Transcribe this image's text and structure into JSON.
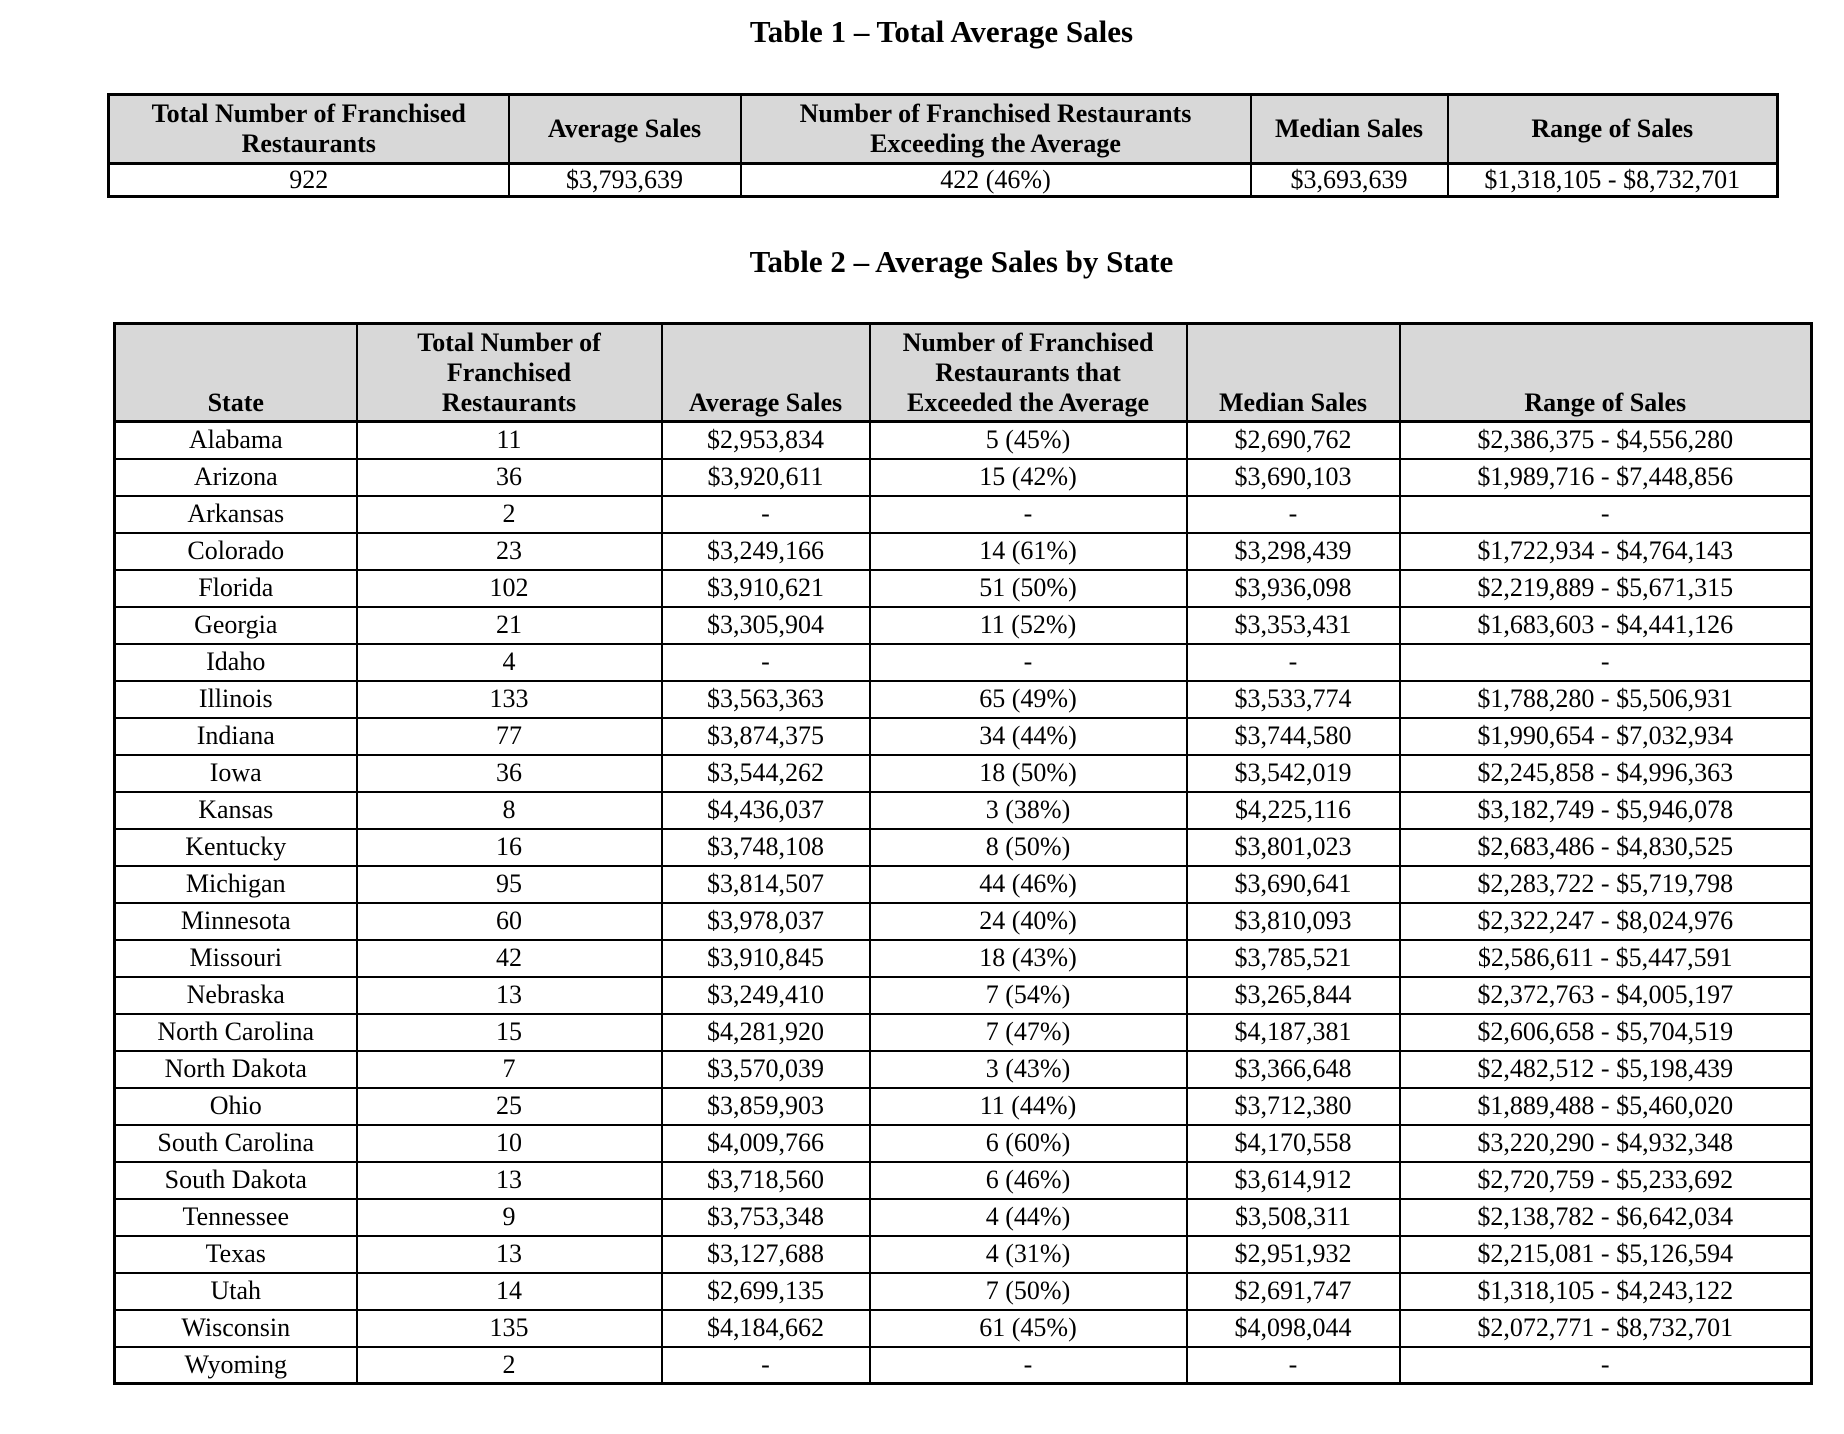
{
  "colors": {
    "header_bg": "#d8d8d8",
    "border": "#000000",
    "text": "#000000",
    "page_bg": "#ffffff"
  },
  "table1": {
    "title": "Table 1 – Total Average Sales",
    "headers": [
      "Total Number of Franchised\nRestaurants",
      "Average Sales",
      "Number of Franchised Restaurants\nExceeding the Average",
      "Median Sales",
      "Range of Sales"
    ],
    "rows": [
      [
        "922",
        "$3,793,639",
        "422 (46%)",
        "$3,693,639",
        "$1,318,105 - $8,732,701"
      ]
    ]
  },
  "table2": {
    "title": "Table 2 – Average Sales by State",
    "headers": [
      "State",
      "Total Number of\nFranchised\nRestaurants",
      "Average Sales",
      "Number of Franchised\nRestaurants that\nExceeded the Average",
      "Median Sales",
      "Range of Sales"
    ],
    "rows": [
      [
        "Alabama",
        "11",
        "$2,953,834",
        "5 (45%)",
        "$2,690,762",
        "$2,386,375 - $4,556,280"
      ],
      [
        "Arizona",
        "36",
        "$3,920,611",
        "15 (42%)",
        "$3,690,103",
        "$1,989,716 - $7,448,856"
      ],
      [
        "Arkansas",
        "2",
        "-",
        "-",
        "-",
        "-"
      ],
      [
        "Colorado",
        "23",
        "$3,249,166",
        "14 (61%)",
        "$3,298,439",
        "$1,722,934 - $4,764,143"
      ],
      [
        "Florida",
        "102",
        "$3,910,621",
        "51 (50%)",
        "$3,936,098",
        "$2,219,889 - $5,671,315"
      ],
      [
        "Georgia",
        "21",
        "$3,305,904",
        "11 (52%)",
        "$3,353,431",
        "$1,683,603 - $4,441,126"
      ],
      [
        "Idaho",
        "4",
        "-",
        "-",
        "-",
        "-"
      ],
      [
        "Illinois",
        "133",
        "$3,563,363",
        "65 (49%)",
        "$3,533,774",
        "$1,788,280 - $5,506,931"
      ],
      [
        "Indiana",
        "77",
        "$3,874,375",
        "34 (44%)",
        "$3,744,580",
        "$1,990,654 - $7,032,934"
      ],
      [
        "Iowa",
        "36",
        "$3,544,262",
        "18 (50%)",
        "$3,542,019",
        "$2,245,858 - $4,996,363"
      ],
      [
        "Kansas",
        "8",
        "$4,436,037",
        "3 (38%)",
        "$4,225,116",
        "$3,182,749 - $5,946,078"
      ],
      [
        "Kentucky",
        "16",
        "$3,748,108",
        "8 (50%)",
        "$3,801,023",
        "$2,683,486 - $4,830,525"
      ],
      [
        "Michigan",
        "95",
        "$3,814,507",
        "44 (46%)",
        "$3,690,641",
        "$2,283,722 - $5,719,798"
      ],
      [
        "Minnesota",
        "60",
        "$3,978,037",
        "24 (40%)",
        "$3,810,093",
        "$2,322,247 - $8,024,976"
      ],
      [
        "Missouri",
        "42",
        "$3,910,845",
        "18 (43%)",
        "$3,785,521",
        "$2,586,611 - $5,447,591"
      ],
      [
        "Nebraska",
        "13",
        "$3,249,410",
        "7 (54%)",
        "$3,265,844",
        "$2,372,763 - $4,005,197"
      ],
      [
        "North Carolina",
        "15",
        "$4,281,920",
        "7 (47%)",
        "$4,187,381",
        "$2,606,658 - $5,704,519"
      ],
      [
        "North Dakota",
        "7",
        "$3,570,039",
        "3 (43%)",
        "$3,366,648",
        "$2,482,512 - $5,198,439"
      ],
      [
        "Ohio",
        "25",
        "$3,859,903",
        "11 (44%)",
        "$3,712,380",
        "$1,889,488 - $5,460,020"
      ],
      [
        "South Carolina",
        "10",
        "$4,009,766",
        "6 (60%)",
        "$4,170,558",
        "$3,220,290 - $4,932,348"
      ],
      [
        "South Dakota",
        "13",
        "$3,718,560",
        "6 (46%)",
        "$3,614,912",
        "$2,720,759 - $5,233,692"
      ],
      [
        "Tennessee",
        "9",
        "$3,753,348",
        "4 (44%)",
        "$3,508,311",
        "$2,138,782 - $6,642,034"
      ],
      [
        "Texas",
        "13",
        "$3,127,688",
        "4 (31%)",
        "$2,951,932",
        "$2,215,081 - $5,126,594"
      ],
      [
        "Utah",
        "14",
        "$2,699,135",
        "7 (50%)",
        "$2,691,747",
        "$1,318,105 - $4,243,122"
      ],
      [
        "Wisconsin",
        "135",
        "$4,184,662",
        "61 (45%)",
        "$4,098,044",
        "$2,072,771 - $8,732,701"
      ],
      [
        "Wyoming",
        "2",
        "-",
        "-",
        "-",
        "-"
      ]
    ]
  }
}
